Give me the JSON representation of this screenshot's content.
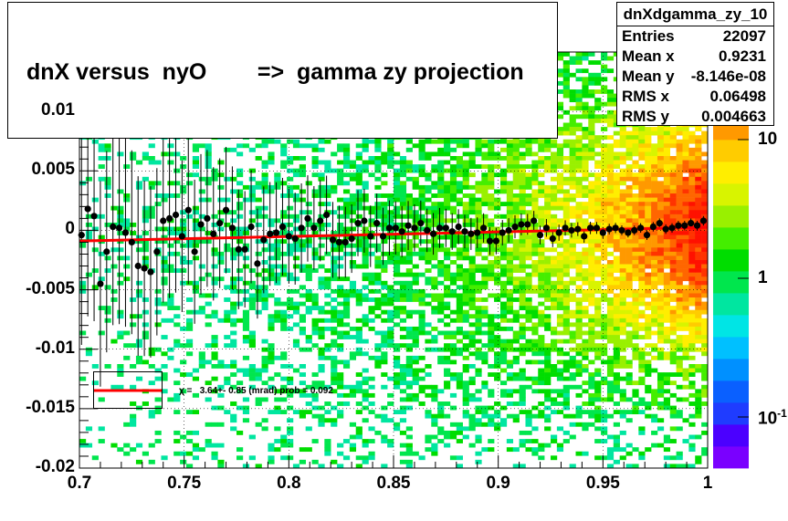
{
  "title": "dnX versus  nyO        =>  gamma zy projection",
  "stats": {
    "name": "dnXdgamma_zy_10",
    "rows": [
      {
        "key": "Entries",
        "value": "22097"
      },
      {
        "key": "Mean x",
        "value": "0.9231"
      },
      {
        "key": "Mean y",
        "value": "-8.146e-08"
      },
      {
        "key": "RMS x",
        "value": "0.06498"
      },
      {
        "key": "RMS y",
        "value": "0.004663"
      }
    ]
  },
  "fit_legend": "χ =   3.64+- 0.85 (mrad) prob = 0.092",
  "colors": {
    "fit_line": "#ff0000",
    "points": "#000000"
  },
  "chart_data": {
    "type": "heatmap",
    "x_range": [
      0.7,
      1.0
    ],
    "y_range": [
      -0.02,
      0.015
    ],
    "x_ticks": [
      "0.7",
      "0.75",
      "0.8",
      "0.85",
      "0.9",
      "0.95",
      "1"
    ],
    "y_ticks": [
      "0.01",
      "0.005",
      "0",
      "-0.005",
      "-0.01",
      "-0.015",
      "-0.02"
    ],
    "colorbar": {
      "scale": "log",
      "ticks": [
        "10",
        "1",
        "10-1"
      ]
    },
    "profile_points": [
      {
        "x": 0.701,
        "y": -0.0004
      },
      {
        "x": 0.704,
        "y": 0.0018
      },
      {
        "x": 0.707,
        "y": 0.0012
      },
      {
        "x": 0.71,
        "y": -0.0045
      },
      {
        "x": 0.713,
        "y": -0.0018
      },
      {
        "x": 0.716,
        "y": 0.0003
      },
      {
        "x": 0.719,
        "y": 0.0002
      },
      {
        "x": 0.722,
        "y": -0.0002
      },
      {
        "x": 0.725,
        "y": -0.001
      },
      {
        "x": 0.728,
        "y": -0.003
      },
      {
        "x": 0.731,
        "y": -0.0032
      },
      {
        "x": 0.734,
        "y": -0.0035
      },
      {
        "x": 0.737,
        "y": -0.0018
      },
      {
        "x": 0.74,
        "y": 0.0008
      },
      {
        "x": 0.743,
        "y": 0.001
      },
      {
        "x": 0.746,
        "y": 0.0013
      },
      {
        "x": 0.749,
        "y": -0.0005
      },
      {
        "x": 0.752,
        "y": 0.0017
      },
      {
        "x": 0.755,
        "y": -0.0018
      },
      {
        "x": 0.758,
        "y": 0.0005
      },
      {
        "x": 0.761,
        "y": 0.001
      },
      {
        "x": 0.764,
        "y": -0.0003
      },
      {
        "x": 0.767,
        "y": 0.0006
      },
      {
        "x": 0.77,
        "y": 0.0017
      },
      {
        "x": 0.773,
        "y": 0.0002
      },
      {
        "x": 0.776,
        "y": -0.0016
      },
      {
        "x": 0.779,
        "y": -0.0016
      },
      {
        "x": 0.782,
        "y": 0.0003
      },
      {
        "x": 0.785,
        "y": -0.0028
      },
      {
        "x": 0.788,
        "y": -0.0008
      },
      {
        "x": 0.791,
        "y": -0.0003
      },
      {
        "x": 0.794,
        "y": -0.0002
      },
      {
        "x": 0.797,
        "y": 0.0003
      },
      {
        "x": 0.8,
        "y": -0.0005
      },
      {
        "x": 0.803,
        "y": -0.0007
      },
      {
        "x": 0.806,
        "y": 0.0002
      },
      {
        "x": 0.809,
        "y": 0.001
      },
      {
        "x": 0.812,
        "y": 0.0002
      },
      {
        "x": 0.815,
        "y": 0.0008
      },
      {
        "x": 0.818,
        "y": 0.0013
      },
      {
        "x": 0.821,
        "y": -0.0008
      },
      {
        "x": 0.824,
        "y": -0.001
      },
      {
        "x": 0.827,
        "y": -0.001
      },
      {
        "x": 0.83,
        "y": -0.0007
      },
      {
        "x": 0.833,
        "y": 0.0006
      },
      {
        "x": 0.836,
        "y": 0.0008
      },
      {
        "x": 0.839,
        "y": -0.0005
      },
      {
        "x": 0.842,
        "y": 0.0006
      },
      {
        "x": 0.845,
        "y": -0.0005
      },
      {
        "x": 0.848,
        "y": 0.0002
      },
      {
        "x": 0.851,
        "y": 0.0002
      },
      {
        "x": 0.854,
        "y": -0.0001
      },
      {
        "x": 0.857,
        "y": 0.0004
      },
      {
        "x": 0.86,
        "y": 0.0002
      },
      {
        "x": 0.863,
        "y": 0.0006
      },
      {
        "x": 0.866,
        "y": 0.0
      },
      {
        "x": 0.869,
        "y": -0.0003
      },
      {
        "x": 0.872,
        "y": 0.0002
      },
      {
        "x": 0.875,
        "y": 0.0002
      },
      {
        "x": 0.878,
        "y": -0.0001
      },
      {
        "x": 0.881,
        "y": 0.0003
      },
      {
        "x": 0.884,
        "y": -0.0001
      },
      {
        "x": 0.887,
        "y": -0.0003
      },
      {
        "x": 0.89,
        "y": -0.0002
      },
      {
        "x": 0.893,
        "y": 0.0002
      },
      {
        "x": 0.896,
        "y": -0.0009
      },
      {
        "x": 0.899,
        "y": -0.0009
      },
      {
        "x": 0.902,
        "y": -0.0002
      },
      {
        "x": 0.905,
        "y": 0.0
      },
      {
        "x": 0.908,
        "y": 0.0003
      },
      {
        "x": 0.911,
        "y": 0.0005
      },
      {
        "x": 0.914,
        "y": 0.0005
      },
      {
        "x": 0.917,
        "y": 0.0008
      },
      {
        "x": 0.92,
        "y": -0.0004
      },
      {
        "x": 0.923,
        "y": 0.0002
      },
      {
        "x": 0.926,
        "y": -0.0007
      },
      {
        "x": 0.929,
        "y": -0.0002
      },
      {
        "x": 0.932,
        "y": 0.0002
      },
      {
        "x": 0.935,
        "y": 0.0
      },
      {
        "x": 0.938,
        "y": 0.0001
      },
      {
        "x": 0.941,
        "y": -0.0005
      },
      {
        "x": 0.944,
        "y": 0.0002
      },
      {
        "x": 0.947,
        "y": 0.0002
      },
      {
        "x": 0.95,
        "y": -0.0002
      },
      {
        "x": 0.953,
        "y": 0.0001
      },
      {
        "x": 0.956,
        "y": 0.0002
      },
      {
        "x": 0.959,
        "y": 0.0
      },
      {
        "x": 0.962,
        "y": -0.0002
      },
      {
        "x": 0.965,
        "y": 0.0
      },
      {
        "x": 0.968,
        "y": 0.0002
      },
      {
        "x": 0.971,
        "y": -0.0004
      },
      {
        "x": 0.974,
        "y": 0.0003
      },
      {
        "x": 0.977,
        "y": 0.0006
      },
      {
        "x": 0.98,
        "y": 0.0001
      },
      {
        "x": 0.983,
        "y": 0.0002
      },
      {
        "x": 0.986,
        "y": 0.0004
      },
      {
        "x": 0.989,
        "y": 0.0004
      },
      {
        "x": 0.992,
        "y": 0.0006
      },
      {
        "x": 0.995,
        "y": 0.0004
      },
      {
        "x": 0.998,
        "y": 0.0008
      }
    ],
    "fit_line": {
      "x0": 0.7,
      "y0": -0.0009,
      "x1": 1.0,
      "y1": 0.00025
    }
  }
}
